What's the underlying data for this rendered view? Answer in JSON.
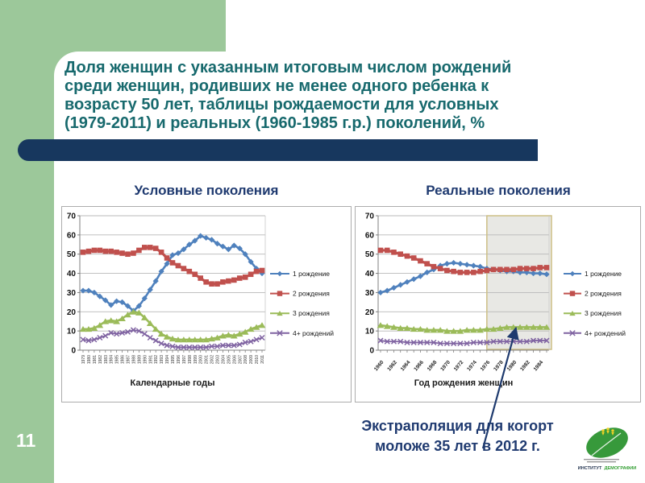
{
  "slide": {
    "page_number": "11",
    "title_lines": [
      "Доля женщин с указанным итоговым числом рождений",
      "среди женщин, родивших не менее одного ребенка к",
      "возрасту 50 лет, таблицы рождаемости для условных",
      "(1979-2011) и реальных (1960-1985 г.р.) поколений, %"
    ],
    "footer_lines": [
      "Экстраполяция для когорт",
      "моложе 35 лет в 2012 г."
    ],
    "logo": {
      "institute": "ИНСТИТУТ",
      "demography": "ДЕМОГРАФИИ"
    }
  },
  "colors": {
    "sidebar_green": "#9cc89a",
    "navy_bar": "#17375E",
    "title_teal": "#17696D",
    "heading_navy": "#1F3A70",
    "series_blue": "#4F81BD",
    "series_red": "#C0504D",
    "series_green": "#9BBB59",
    "series_purple": "#8064A2",
    "shaded_fill": "#E8E8E4",
    "shaded_border": "#CDBF85"
  },
  "chart_data": [
    {
      "type": "line",
      "title": "Условные поколения",
      "xlabel": "Календарные годы",
      "ylabel": "",
      "ylim": [
        0,
        70
      ],
      "yticks": [
        0,
        10,
        20,
        30,
        40,
        50,
        60,
        70
      ],
      "grid": true,
      "legend_position": "right",
      "x": [
        1979,
        1980,
        1981,
        1982,
        1983,
        1984,
        1985,
        1986,
        1987,
        1988,
        1989,
        1990,
        1991,
        1992,
        1993,
        1994,
        1995,
        1996,
        1997,
        1998,
        1999,
        2000,
        2001,
        2002,
        2003,
        2004,
        2005,
        2006,
        2007,
        2008,
        2009,
        2010,
        2011
      ],
      "series": [
        {
          "name": "1 рождение",
          "color": "#4F81BD",
          "marker": "diamond",
          "values": [
            31,
            31,
            30,
            28,
            26,
            23.5,
            25.5,
            25,
            23,
            20.5,
            23,
            27,
            31.5,
            36,
            41,
            45,
            49.5,
            50.5,
            52.5,
            55,
            57,
            59.5,
            58.5,
            57.5,
            55.5,
            54,
            52.5,
            54.5,
            53,
            50,
            46,
            42.5,
            40
          ]
        },
        {
          "name": "2 рождения",
          "color": "#C0504D",
          "marker": "square",
          "values": [
            51,
            51.5,
            52,
            52,
            51.5,
            51.5,
            51,
            50.5,
            50,
            50.5,
            52,
            53.5,
            53.5,
            53,
            51,
            48,
            45.5,
            44,
            42.5,
            41,
            39.5,
            37.5,
            35.5,
            34.5,
            34.5,
            35.5,
            36,
            36.5,
            37.5,
            38,
            39.5,
            41,
            41.5
          ]
        },
        {
          "name": "3 рождения",
          "color": "#9BBB59",
          "marker": "triangle",
          "values": [
            11,
            11,
            11.5,
            13,
            15,
            15.5,
            15,
            16.5,
            18.5,
            20,
            19.5,
            17,
            14,
            11,
            8.5,
            7,
            6,
            5.5,
            5.5,
            5.5,
            5.5,
            5.5,
            5.5,
            6,
            6.5,
            7.5,
            8,
            7.5,
            8.5,
            9.5,
            11,
            12,
            13
          ]
        },
        {
          "name": "4+ рождений",
          "color": "#8064A2",
          "marker": "x",
          "values": [
            5.5,
            5,
            5.5,
            6.5,
            7.5,
            9,
            8.5,
            9,
            9.5,
            10.5,
            10,
            8.5,
            6.5,
            5,
            3.5,
            2.5,
            2,
            1.5,
            1.5,
            1.5,
            1.5,
            1.5,
            1.5,
            2,
            2,
            2.5,
            2.5,
            2.5,
            3,
            4,
            4.5,
            5.5,
            6.5
          ]
        }
      ]
    },
    {
      "type": "line",
      "title": "Реальные поколения",
      "xlabel": "Год рождения женщин",
      "ylabel": "",
      "ylim": [
        0,
        70
      ],
      "yticks": [
        0,
        10,
        20,
        30,
        40,
        50,
        60,
        70
      ],
      "grid": true,
      "legend_position": "right",
      "x": [
        1960,
        1961,
        1962,
        1963,
        1964,
        1965,
        1966,
        1967,
        1968,
        1969,
        1970,
        1971,
        1972,
        1973,
        1974,
        1975,
        1976,
        1977,
        1978,
        1979,
        1980,
        1981,
        1982,
        1983,
        1984,
        1985
      ],
      "xtick_labels": [
        "1960",
        "1962",
        "1964",
        "1966",
        "1968",
        "1970",
        "1972",
        "1974",
        "1976",
        "1978",
        "1980",
        "1982",
        "1984"
      ],
      "shaded_region": {
        "start_x": 1976,
        "end_x": 1985,
        "meaning": "экстраполяция"
      },
      "series": [
        {
          "name": "1 рождение",
          "color": "#4F81BD",
          "marker": "diamond",
          "values": [
            30,
            31,
            32.5,
            34,
            35.5,
            37,
            38.5,
            40.5,
            42,
            44,
            45,
            45.5,
            45,
            44.5,
            44,
            43.5,
            42.5,
            42,
            41.5,
            41,
            41,
            40.5,
            40.5,
            40,
            40,
            39.5
          ]
        },
        {
          "name": "2 рождения",
          "color": "#C0504D",
          "marker": "square",
          "values": [
            52,
            52,
            51,
            50,
            49,
            48,
            46.5,
            45,
            43.5,
            42.5,
            41.5,
            41,
            40.5,
            40.5,
            40.5,
            41,
            41.5,
            42,
            42,
            42,
            42,
            42.5,
            42.5,
            42.5,
            43,
            43
          ]
        },
        {
          "name": "3 рождения",
          "color": "#9BBB59",
          "marker": "triangle",
          "values": [
            13,
            12.5,
            12,
            11.5,
            11.5,
            11,
            11,
            10.5,
            10.5,
            10.5,
            10,
            10,
            10,
            10.5,
            10.5,
            10.5,
            11,
            11,
            11.5,
            12,
            12,
            12,
            12,
            12,
            12,
            12
          ]
        },
        {
          "name": "4+ рождений",
          "color": "#8064A2",
          "marker": "x",
          "values": [
            5,
            4.5,
            4.5,
            4.5,
            4,
            4,
            4,
            4,
            4,
            3.5,
            3.5,
            3.5,
            3.5,
            3.5,
            4,
            4,
            4,
            4.5,
            4.5,
            4.5,
            4.5,
            4.5,
            4.5,
            5,
            5,
            5
          ]
        }
      ]
    }
  ]
}
